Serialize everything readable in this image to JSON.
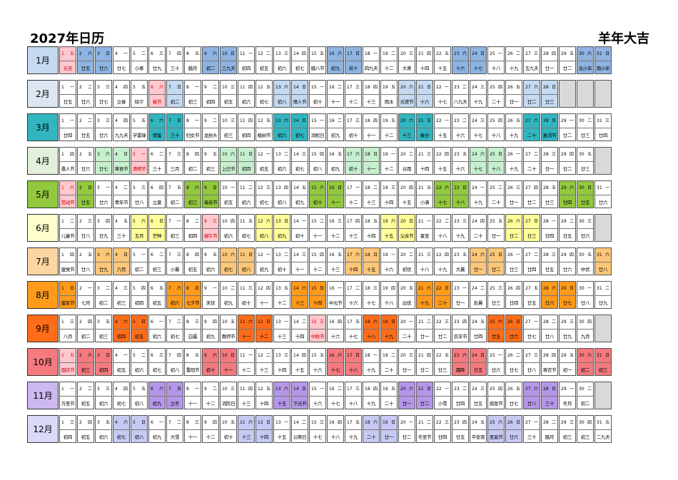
{
  "title_left": "2027年日历",
  "title_right": "羊年大吉",
  "months": [
    {
      "label": "1月",
      "weekend_color": "#8db4e2",
      "label_color": "#c5d9f1",
      "first_weekday": 5,
      "days": 31,
      "lunar": [
        "元旦",
        "廿五",
        "廿六",
        "廿七",
        "小寒",
        "廿九",
        "三十",
        "腊月",
        "初二",
        "三九天",
        "初四",
        "初五",
        "初六",
        "初七",
        "腊八节",
        "初九",
        "初十",
        "四九天",
        "十二",
        "大寒",
        "十四",
        "十五",
        "十六",
        "十七",
        "十八",
        "十九",
        "五九天",
        "廿一",
        "廿二",
        "北小年",
        "南小年"
      ],
      "special": {
        "1": "#ffc7ce"
      },
      "redtext": [
        "1"
      ]
    },
    {
      "label": "2月",
      "weekend_color": "#c5d9f1",
      "label_color": "#dce6f1",
      "first_weekday": 1,
      "days": 28,
      "lunar": [
        "廿五",
        "廿六",
        "廿七",
        "立春",
        "除夕",
        "春节",
        "初二",
        "初三",
        "初四",
        "初五",
        "初六",
        "初七",
        "初八",
        "情人节",
        "初十",
        "十一",
        "十二",
        "十三",
        "雨水",
        "元宵节",
        "十六",
        "十七",
        "八九天",
        "十九",
        "二十",
        "廿一",
        "廿二",
        "廿三"
      ],
      "special": {
        "6": "#ffc7ce"
      },
      "redtext": [
        "6"
      ]
    },
    {
      "label": "3月",
      "weekend_color": "#31b6c0",
      "label_color": "#31b6c0",
      "first_weekday": 1,
      "days": 31,
      "lunar": [
        "廿四",
        "廿五",
        "廿六",
        "九九天",
        "学雷锋",
        "惊蛰",
        "三十",
        "妇女节",
        "龙抬头",
        "初三",
        "初四",
        "植树节",
        "初六",
        "初七",
        "消权日",
        "初九",
        "初十",
        "十一",
        "十二",
        "十三",
        "春分",
        "十五",
        "十六",
        "十七",
        "十八",
        "十九",
        "二十",
        "复活节",
        "廿二",
        "廿三",
        "廿四"
      ],
      "special": {},
      "redtext": []
    },
    {
      "label": "4月",
      "weekend_color": "#c6efce",
      "label_color": "#e2efda",
      "first_weekday": 4,
      "days": 30,
      "lunar": [
        "愚人节",
        "廿六",
        "廿七",
        "寒食节",
        "清明节",
        "三十",
        "三月",
        "初二",
        "初三",
        "上巳节",
        "初四",
        "初五",
        "初六",
        "初七",
        "初八",
        "初九",
        "初十",
        "十一",
        "十二",
        "谷雨",
        "十四",
        "十五",
        "十六",
        "十七",
        "十八",
        "十九",
        "二十",
        "廿一",
        "廿二",
        "廿三"
      ],
      "special": {
        "5": "#ffc7ce"
      },
      "redtext": [
        "5"
      ]
    },
    {
      "label": "5月",
      "weekend_color": "#92c83e",
      "label_color": "#92c83e",
      "first_weekday": 6,
      "days": 31,
      "lunar": [
        "劳动节",
        "廿五",
        "廿六",
        "青年节",
        "廿八",
        "立夏",
        "初二",
        "初三",
        "母亲节",
        "初五",
        "初六",
        "初七",
        "初八",
        "初九",
        "初十",
        "十一",
        "十二",
        "十三",
        "十四",
        "十五",
        "小满",
        "十七",
        "十八",
        "十九",
        "二十",
        "廿一",
        "廿二",
        "廿三",
        "廿四",
        "廿五",
        "廿六"
      ],
      "special": {
        "1": "#ffc7ce"
      },
      "redtext": [
        "1"
      ]
    },
    {
      "label": "6月",
      "weekend_color": "#ffff99",
      "label_color": "#ffffcc",
      "first_weekday": 2,
      "days": 30,
      "lunar": [
        "儿童节",
        "廿八",
        "廿九",
        "三十",
        "五月",
        "芒种",
        "初三",
        "初四",
        "端午节",
        "初六",
        "初七",
        "初八",
        "初九",
        "初十",
        "十一",
        "十二",
        "十三",
        "十四",
        "十五",
        "父亲节",
        "夏至",
        "十八",
        "十九",
        "二十",
        "廿一",
        "廿二",
        "廿三",
        "廿四",
        "廿五",
        "廿六"
      ],
      "special": {
        "9": "#ffc7ce"
      },
      "redtext": [
        "9"
      ]
    },
    {
      "label": "7月",
      "weekend_color": "#fcc779",
      "label_color": "#fcd5a0",
      "first_weekday": 4,
      "days": 31,
      "lunar": [
        "建党节",
        "廿八",
        "廿九",
        "六月",
        "初二",
        "初三",
        "小暑",
        "初五",
        "初六",
        "初七",
        "初八",
        "初九",
        "初十",
        "十一",
        "十二",
        "十三",
        "十四",
        "十五",
        "十六",
        "初伏",
        "十八",
        "十九",
        "大暑",
        "廿一",
        "廿二",
        "廿三",
        "廿四",
        "廿五",
        "廿六",
        "中伏",
        "廿八"
      ],
      "special": {},
      "redtext": []
    },
    {
      "label": "8月",
      "weekend_color": "#ff9a1a",
      "label_color": "#ff9a1a",
      "first_weekday": 7,
      "days": 31,
      "lunar": [
        "建军节",
        "七月",
        "初二",
        "初三",
        "初四",
        "初五",
        "初六",
        "七夕节",
        "末伏",
        "初九",
        "初十",
        "十一",
        "十二",
        "十三",
        "十四",
        "中元节",
        "十六",
        "十七",
        "十八",
        "出伏",
        "十九",
        "二十",
        "廿一",
        "处暑",
        "廿三",
        "廿四",
        "廿五",
        "廿六",
        "廿七",
        "廿八",
        "廿九"
      ],
      "special": {},
      "redtext": []
    },
    {
      "label": "9月",
      "weekend_color": "#ff6d1a",
      "label_color": "#ff6d1a",
      "first_weekday": 3,
      "days": 30,
      "lunar": [
        "八月",
        "初二",
        "初三",
        "初四",
        "初五",
        "初六",
        "初七",
        "白露",
        "初九",
        "教师节",
        "十一",
        "十二",
        "十三",
        "十四",
        "中秋节",
        "十六",
        "十七",
        "十八",
        "十九",
        "二十",
        "廿一",
        "廿二",
        "农丰节",
        "廿四",
        "廿五",
        "廿六",
        "廿七",
        "廿八",
        "廿九",
        "九月"
      ],
      "special": {
        "15": "#ffc7ce"
      },
      "redtext": [
        "15"
      ]
    },
    {
      "label": "10月",
      "weekend_color": "#f47a7f",
      "label_color": "#f47a7f",
      "first_weekday": 5,
      "days": 31,
      "lunar": [
        "国庆节",
        "初三",
        "初四",
        "初五",
        "初六",
        "初七",
        "初八",
        "重阳节",
        "初十",
        "十一",
        "十二",
        "十三",
        "十四",
        "十五",
        "十六",
        "十七",
        "十八",
        "十九",
        "二十",
        "廿一",
        "廿二",
        "廿三",
        "霜降",
        "廿五",
        "廿六",
        "廿七",
        "廿八",
        "寒衣节",
        "初一",
        "初二",
        "初三"
      ],
      "special": {
        "1": "#ffc7ce"
      },
      "redtext": [
        "1"
      ]
    },
    {
      "label": "11月",
      "weekend_color": "#b497e8",
      "label_color": "#cdb8f2",
      "first_weekday": 1,
      "days": 30,
      "lunar": [
        "万圣节",
        "初五",
        "初六",
        "初七",
        "初八",
        "初九",
        "立冬",
        "十一",
        "十二",
        "消防日",
        "十三",
        "十四",
        "十五",
        "下元节",
        "十六",
        "十七",
        "十八",
        "十九",
        "二十",
        "廿一",
        "廿二",
        "小雪",
        "廿四",
        "廿五",
        "感恩节",
        "廿七",
        "廿八",
        "三十",
        "冬月",
        "初二"
      ],
      "special": {},
      "redtext": []
    },
    {
      "label": "12月",
      "weekend_color": "#c7c9f5",
      "label_color": "#d9daf7",
      "first_weekday": 3,
      "days": 31,
      "lunar": [
        "初四",
        "初五",
        "初六",
        "初七",
        "初八",
        "初九",
        "大雪",
        "十一",
        "十二",
        "初十",
        "十三",
        "十四",
        "十五",
        "公祭日",
        "十七",
        "十八",
        "十九",
        "二十",
        "廿一",
        "廿二",
        "冬至节",
        "廿四",
        "廿五",
        "平安夜",
        "圣诞节",
        "廿六",
        "三十",
        "腊月",
        "初三",
        "初三",
        "二九天"
      ],
      "special": {},
      "redtext": []
    }
  ],
  "weekday_names": [
    "一",
    "二",
    "三",
    "四",
    "五",
    "六",
    "日"
  ]
}
